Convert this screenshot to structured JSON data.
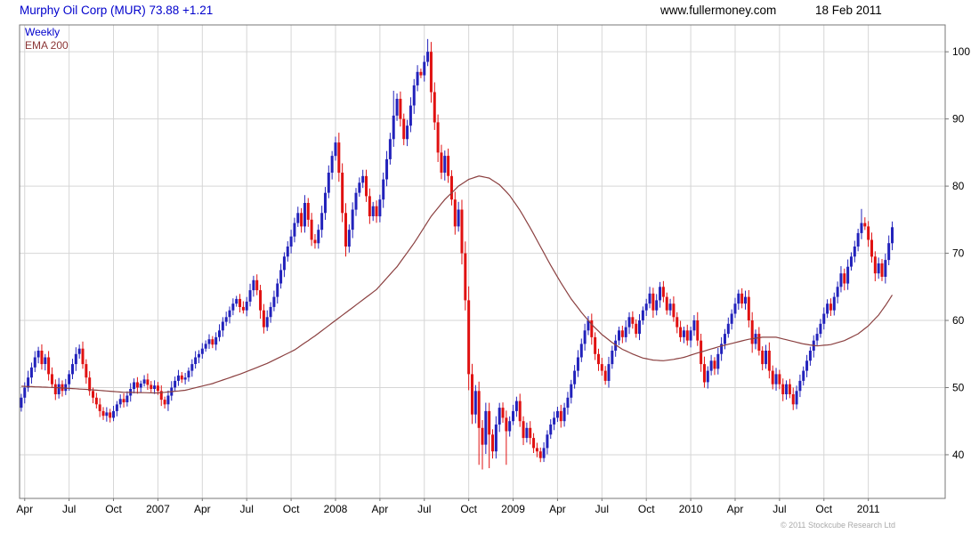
{
  "header": {
    "title": "Murphy Oil Corp (MUR) 73.88 +1.21",
    "website": "www.fullermoney.com",
    "date": "18 Feb 2011"
  },
  "legend": {
    "timeframe": "Weekly",
    "overlay": "EMA 200"
  },
  "footer": {
    "copyright": "© 2011 Stockcube Research Ltd"
  },
  "chart_data": {
    "type": "candlestick",
    "name": "Murphy Oil Corp",
    "symbol": "MUR",
    "last_price": 73.88,
    "change": "+1.21",
    "timeframe": "weekly",
    "ylim": [
      33.5,
      104
    ],
    "y_ticks": [
      40,
      50,
      60,
      70,
      80,
      90,
      100
    ],
    "x_domain_weeks": [
      0,
      270
    ],
    "x_ticks": [
      {
        "label": "Apr",
        "week": 1
      },
      {
        "label": "Jul",
        "week": 14
      },
      {
        "label": "Oct",
        "week": 27
      },
      {
        "label": "2007",
        "week": 40
      },
      {
        "label": "Apr",
        "week": 53
      },
      {
        "label": "Jul",
        "week": 66
      },
      {
        "label": "Oct",
        "week": 79
      },
      {
        "label": "2008",
        "week": 92
      },
      {
        "label": "Apr",
        "week": 105
      },
      {
        "label": "Jul",
        "week": 118
      },
      {
        "label": "Oct",
        "week": 131
      },
      {
        "label": "2009",
        "week": 144
      },
      {
        "label": "Apr",
        "week": 157
      },
      {
        "label": "Jul",
        "week": 170
      },
      {
        "label": "Oct",
        "week": 183
      },
      {
        "label": "2010",
        "week": 196
      },
      {
        "label": "Apr",
        "week": 209
      },
      {
        "label": "Jul",
        "week": 222
      },
      {
        "label": "Oct",
        "week": 235
      },
      {
        "label": "2011",
        "week": 248
      }
    ],
    "first_open": 47.0,
    "closes": [
      48.5,
      50.0,
      51.5,
      53.0,
      54.5,
      55.5,
      53.5,
      54.5,
      52.0,
      50.5,
      49.0,
      50.5,
      49.5,
      50.5,
      52.0,
      53.5,
      55.0,
      55.8,
      53.5,
      51.5,
      49.5,
      48.5,
      47.5,
      46.5,
      45.8,
      46.3,
      45.5,
      46.5,
      47.5,
      48.3,
      47.8,
      48.8,
      49.8,
      50.8,
      50.0,
      50.6,
      51.2,
      50.4,
      49.8,
      50.3,
      49.5,
      48.2,
      47.5,
      48.8,
      50.0,
      51.0,
      51.8,
      51.2,
      51.5,
      52.5,
      53.5,
      54.5,
      55.0,
      55.8,
      56.5,
      57.2,
      56.4,
      57.5,
      58.5,
      59.8,
      60.5,
      61.5,
      62.5,
      63.2,
      62.0,
      61.5,
      62.8,
      64.5,
      66.0,
      64.5,
      61.5,
      59.0,
      60.5,
      62.0,
      63.5,
      65.5,
      67.5,
      69.5,
      71.0,
      72.5,
      74.5,
      76.0,
      74.0,
      77.5,
      75.0,
      72.0,
      71.5,
      73.5,
      76.0,
      79.0,
      82.0,
      84.5,
      86.5,
      82.0,
      76.0,
      71.0,
      73.5,
      76.5,
      79.0,
      80.5,
      81.5,
      78.5,
      75.5,
      77.0,
      75.5,
      78.0,
      81.0,
      84.0,
      87.0,
      90.5,
      93.0,
      90.0,
      87.0,
      89.0,
      92.0,
      95.0,
      97.0,
      96.5,
      98.5,
      100.0,
      94.0,
      89.5,
      85.0,
      82.0,
      84.5,
      81.5,
      78.0,
      74.0,
      76.5,
      70.0,
      63.0,
      52.0,
      46.0,
      49.5,
      44.0,
      41.5,
      46.5,
      43.0,
      40.5,
      44.5,
      47.0,
      45.5,
      43.5,
      45.0,
      46.5,
      48.0,
      45.0,
      42.5,
      44.0,
      42.5,
      41.0,
      40.5,
      39.5,
      41.0,
      43.0,
      44.5,
      45.5,
      46.5,
      45.0,
      47.0,
      48.5,
      50.5,
      52.5,
      54.5,
      56.5,
      58.5,
      60.0,
      57.5,
      55.0,
      53.5,
      52.5,
      51.0,
      53.5,
      55.5,
      57.0,
      58.5,
      57.5,
      59.0,
      60.5,
      59.5,
      58.0,
      60.0,
      61.5,
      62.5,
      64.0,
      61.5,
      63.0,
      65.0,
      63.5,
      61.5,
      62.5,
      60.5,
      59.0,
      57.5,
      58.5,
      57.0,
      58.5,
      60.0,
      57.0,
      53.5,
      50.8,
      52.5,
      54.0,
      52.8,
      55.0,
      56.5,
      58.0,
      59.5,
      61.0,
      62.5,
      64.0,
      62.5,
      63.5,
      60.0,
      56.5,
      58.0,
      55.5,
      53.5,
      55.5,
      52.5,
      50.5,
      52.0,
      50.5,
      49.0,
      50.5,
      49.0,
      47.5,
      49.5,
      51.0,
      52.5,
      54.0,
      55.5,
      57.0,
      58.0,
      59.5,
      61.0,
      62.5,
      61.5,
      63.5,
      65.0,
      67.0,
      65.5,
      68.0,
      69.5,
      71.0,
      73.0,
      74.5,
      74.0,
      72.0,
      69.5,
      67.0,
      68.5,
      66.5,
      69.0,
      71.5,
      73.88
    ],
    "wick_high_overrides": {
      "119": 101.9,
      "109": 94.2,
      "246": 76.6
    },
    "wick_low_overrides": {
      "134": 38.5,
      "135": 37.8,
      "137": 38.0,
      "142": 38.5,
      "152": 38.9
    },
    "ema200_points": [
      [
        0,
        50.2
      ],
      [
        10,
        50.0
      ],
      [
        20,
        49.7
      ],
      [
        30,
        49.3
      ],
      [
        40,
        49.2
      ],
      [
        48,
        49.6
      ],
      [
        56,
        50.6
      ],
      [
        64,
        52.0
      ],
      [
        72,
        53.6
      ],
      [
        80,
        55.6
      ],
      [
        86,
        57.7
      ],
      [
        92,
        60.0
      ],
      [
        98,
        62.3
      ],
      [
        104,
        64.6
      ],
      [
        110,
        68.0
      ],
      [
        115,
        71.5
      ],
      [
        120,
        75.5
      ],
      [
        124,
        78.0
      ],
      [
        128,
        80.0
      ],
      [
        131,
        81.0
      ],
      [
        134,
        81.5
      ],
      [
        137,
        81.2
      ],
      [
        140,
        80.2
      ],
      [
        143,
        78.6
      ],
      [
        146,
        76.4
      ],
      [
        149,
        73.8
      ],
      [
        152,
        71.0
      ],
      [
        155,
        68.2
      ],
      [
        158,
        65.6
      ],
      [
        161,
        63.2
      ],
      [
        164,
        61.2
      ],
      [
        167,
        59.4
      ],
      [
        170,
        57.9
      ],
      [
        173,
        56.7
      ],
      [
        176,
        55.7
      ],
      [
        179,
        55.0
      ],
      [
        182,
        54.4
      ],
      [
        185,
        54.1
      ],
      [
        188,
        54.0
      ],
      [
        191,
        54.2
      ],
      [
        194,
        54.5
      ],
      [
        197,
        55.0
      ],
      [
        201,
        55.6
      ],
      [
        205,
        56.2
      ],
      [
        209,
        56.7
      ],
      [
        213,
        57.2
      ],
      [
        217,
        57.5
      ],
      [
        221,
        57.5
      ],
      [
        225,
        57.0
      ],
      [
        229,
        56.5
      ],
      [
        233,
        56.2
      ],
      [
        237,
        56.4
      ],
      [
        241,
        57.0
      ],
      [
        245,
        58.0
      ],
      [
        248,
        59.2
      ],
      [
        251,
        60.8
      ],
      [
        253,
        62.2
      ],
      [
        255,
        63.8
      ]
    ],
    "colors": {
      "up": "#2222bb",
      "down": "#e01111",
      "ema": "#8b4040",
      "grid": "#d6d6d6",
      "frame": "#777777",
      "axis_text": "#000000",
      "title": "#0000cc"
    }
  }
}
